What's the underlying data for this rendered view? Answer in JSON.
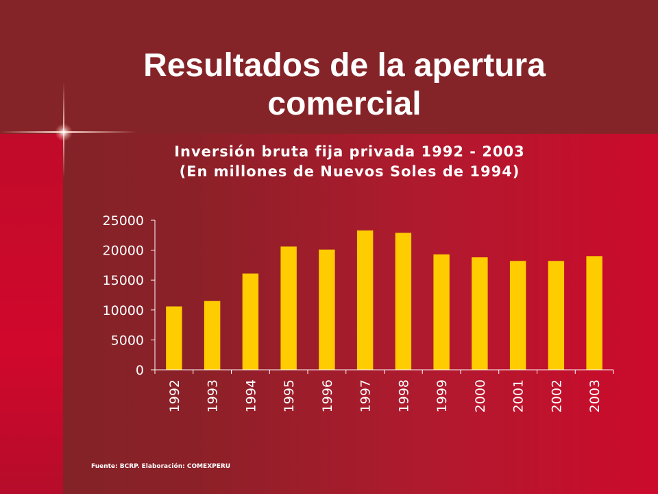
{
  "slide": {
    "title_line1": "Resultados de la apertura",
    "title_line2": "comercial",
    "source": "Fuente: BCRP. Elaboración: COMEXPERU"
  },
  "chart_data": {
    "type": "bar",
    "title_line1": "Inversión bruta fija privada 1992 - 2003",
    "title_line2": "(En millones de Nuevos Soles de 1994)",
    "categories": [
      "1992",
      "1993",
      "1994",
      "1995",
      "1996",
      "1997",
      "1998",
      "1999",
      "2000",
      "2001",
      "2002",
      "2003"
    ],
    "values": [
      10600,
      11500,
      16100,
      20600,
      20100,
      23300,
      22900,
      19300,
      18800,
      18200,
      18200,
      19000
    ],
    "ylim": [
      0,
      25000
    ],
    "yticks": [
      0,
      5000,
      10000,
      15000,
      20000,
      25000
    ],
    "xlabel": "",
    "ylabel": "",
    "bar_color": "#ffcc00",
    "axis_color": "#ffffff",
    "grid": false,
    "legend": "none"
  }
}
